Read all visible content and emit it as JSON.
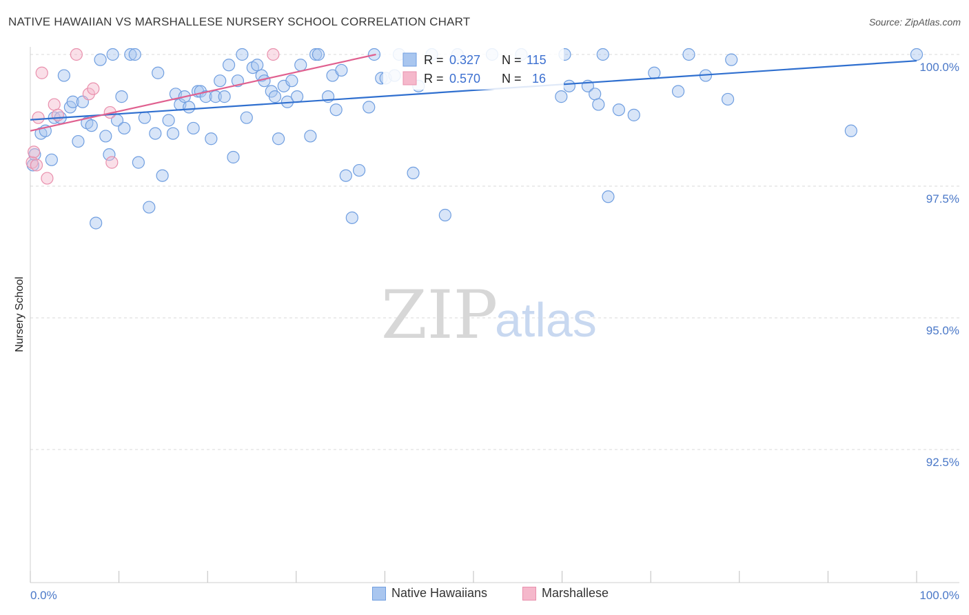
{
  "title": "NATIVE HAWAIIAN VS MARSHALLESE NURSERY SCHOOL CORRELATION CHART",
  "source": "Source: ZipAtlas.com",
  "watermark": {
    "zip": "ZIP",
    "atlas": "atlas"
  },
  "legend_top": [
    {
      "r_label": "R = ",
      "r_value": "0.327",
      "n_label": "N = ",
      "n_value": "115"
    },
    {
      "r_label": "R = ",
      "r_value": "0.570",
      "n_label": "N = ",
      "n_value": "16"
    }
  ],
  "legend_bottom": [
    {
      "label": "Native Hawaiians"
    },
    {
      "label": "Marshallese"
    }
  ],
  "colors": {
    "blue_fill": "#a9c6ef",
    "blue_stroke": "#6f9ee0",
    "blue_line": "#2f6fcf",
    "pink_fill": "#f5b8cb",
    "pink_stroke": "#e98fac",
    "pink_line": "#e0608f",
    "grid": "#d8d8d8",
    "tick_label": "#4a78c8"
  },
  "chart_data": {
    "type": "scatter",
    "xlabel": "",
    "ylabel": "Nursery School",
    "xlim": [
      0,
      100
    ],
    "ylim": [
      90.0,
      100.2
    ],
    "x_tick_labels": [
      "0.0%",
      "100.0%"
    ],
    "y_ticks": [
      100.0,
      97.5,
      95.0,
      92.5
    ],
    "y_tick_labels": [
      "100.0%",
      "97.5%",
      "95.0%",
      "92.5%"
    ],
    "grid": "horizontal dashed",
    "series": [
      {
        "name": "Native Hawaiians",
        "color": "#a9c6ef",
        "trend": {
          "x": [
            0,
            100
          ],
          "y": [
            98.76,
            99.88
          ]
        },
        "points": [
          {
            "x": 0.3,
            "y": 97.9
          },
          {
            "x": 0.5,
            "y": 98.1
          },
          {
            "x": 1.2,
            "y": 98.5
          },
          {
            "x": 1.7,
            "y": 98.55
          },
          {
            "x": 2.4,
            "y": 98.0
          },
          {
            "x": 2.7,
            "y": 98.8
          },
          {
            "x": 3.4,
            "y": 98.8
          },
          {
            "x": 3.8,
            "y": 99.6
          },
          {
            "x": 4.5,
            "y": 99.0
          },
          {
            "x": 4.8,
            "y": 99.1
          },
          {
            "x": 5.4,
            "y": 98.35
          },
          {
            "x": 5.9,
            "y": 99.1
          },
          {
            "x": 6.4,
            "y": 98.7
          },
          {
            "x": 6.9,
            "y": 98.65
          },
          {
            "x": 7.4,
            "y": 96.8
          },
          {
            "x": 7.9,
            "y": 99.9
          },
          {
            "x": 8.5,
            "y": 98.45
          },
          {
            "x": 8.9,
            "y": 98.1
          },
          {
            "x": 9.3,
            "y": 100.0
          },
          {
            "x": 9.8,
            "y": 98.75
          },
          {
            "x": 10.3,
            "y": 99.2
          },
          {
            "x": 10.6,
            "y": 98.6
          },
          {
            "x": 11.3,
            "y": 100.0
          },
          {
            "x": 11.8,
            "y": 100.0
          },
          {
            "x": 12.2,
            "y": 97.95
          },
          {
            "x": 12.9,
            "y": 98.8
          },
          {
            "x": 13.4,
            "y": 97.1
          },
          {
            "x": 14.1,
            "y": 98.5
          },
          {
            "x": 14.4,
            "y": 99.65
          },
          {
            "x": 14.9,
            "y": 97.7
          },
          {
            "x": 15.6,
            "y": 98.75
          },
          {
            "x": 16.1,
            "y": 98.5
          },
          {
            "x": 16.4,
            "y": 99.25
          },
          {
            "x": 16.9,
            "y": 99.05
          },
          {
            "x": 17.4,
            "y": 99.2
          },
          {
            "x": 17.9,
            "y": 99.0
          },
          {
            "x": 18.4,
            "y": 98.6
          },
          {
            "x": 18.9,
            "y": 99.3
          },
          {
            "x": 19.2,
            "y": 99.3
          },
          {
            "x": 19.8,
            "y": 99.2
          },
          {
            "x": 20.4,
            "y": 98.4
          },
          {
            "x": 20.9,
            "y": 99.2
          },
          {
            "x": 21.4,
            "y": 99.5
          },
          {
            "x": 21.9,
            "y": 99.2
          },
          {
            "x": 22.4,
            "y": 99.8
          },
          {
            "x": 22.9,
            "y": 98.05
          },
          {
            "x": 23.4,
            "y": 99.5
          },
          {
            "x": 23.9,
            "y": 100.0
          },
          {
            "x": 24.4,
            "y": 98.8
          },
          {
            "x": 25.1,
            "y": 99.75
          },
          {
            "x": 25.6,
            "y": 99.8
          },
          {
            "x": 26.1,
            "y": 99.6
          },
          {
            "x": 26.4,
            "y": 99.5
          },
          {
            "x": 27.2,
            "y": 99.3
          },
          {
            "x": 27.6,
            "y": 99.2
          },
          {
            "x": 28.0,
            "y": 98.4
          },
          {
            "x": 28.6,
            "y": 99.4
          },
          {
            "x": 29.0,
            "y": 99.1
          },
          {
            "x": 29.5,
            "y": 99.5
          },
          {
            "x": 30.1,
            "y": 99.2
          },
          {
            "x": 30.5,
            "y": 99.8
          },
          {
            "x": 31.6,
            "y": 98.45
          },
          {
            "x": 32.2,
            "y": 100.0
          },
          {
            "x": 32.5,
            "y": 100.0
          },
          {
            "x": 33.6,
            "y": 99.2
          },
          {
            "x": 34.1,
            "y": 99.6
          },
          {
            "x": 34.5,
            "y": 98.95
          },
          {
            "x": 35.1,
            "y": 99.7
          },
          {
            "x": 35.6,
            "y": 97.7
          },
          {
            "x": 36.3,
            "y": 96.9
          },
          {
            "x": 37.1,
            "y": 97.8
          },
          {
            "x": 38.2,
            "y": 99.0
          },
          {
            "x": 38.8,
            "y": 100.0
          },
          {
            "x": 39.6,
            "y": 99.55
          },
          {
            "x": 40.1,
            "y": 99.55
          },
          {
            "x": 41.1,
            "y": 99.6
          },
          {
            "x": 41.6,
            "y": 100.0
          },
          {
            "x": 43.2,
            "y": 97.75
          },
          {
            "x": 43.8,
            "y": 99.4
          },
          {
            "x": 45.3,
            "y": 100.0
          },
          {
            "x": 46.8,
            "y": 96.95
          },
          {
            "x": 48.2,
            "y": 100.0
          },
          {
            "x": 52.1,
            "y": 100.0
          },
          {
            "x": 55.4,
            "y": 100.0
          },
          {
            "x": 59.9,
            "y": 99.2
          },
          {
            "x": 60.3,
            "y": 100.0
          },
          {
            "x": 60.8,
            "y": 99.4
          },
          {
            "x": 62.9,
            "y": 99.4
          },
          {
            "x": 63.7,
            "y": 99.25
          },
          {
            "x": 64.1,
            "y": 99.05
          },
          {
            "x": 64.6,
            "y": 100.0
          },
          {
            "x": 65.2,
            "y": 97.3
          },
          {
            "x": 66.4,
            "y": 98.95
          },
          {
            "x": 68.1,
            "y": 98.85
          },
          {
            "x": 70.4,
            "y": 99.65
          },
          {
            "x": 73.1,
            "y": 99.3
          },
          {
            "x": 74.3,
            "y": 100.0
          },
          {
            "x": 76.2,
            "y": 99.6
          },
          {
            "x": 78.7,
            "y": 99.15
          },
          {
            "x": 79.1,
            "y": 99.9
          },
          {
            "x": 92.6,
            "y": 98.55
          },
          {
            "x": 100.0,
            "y": 100.0
          }
        ]
      },
      {
        "name": "Marshallese",
        "color": "#f5b8cb",
        "trend": {
          "x": [
            0,
            39
          ],
          "y": [
            98.55,
            100.0
          ]
        },
        "points": [
          {
            "x": 0.2,
            "y": 97.95
          },
          {
            "x": 0.4,
            "y": 98.15
          },
          {
            "x": 0.7,
            "y": 97.9
          },
          {
            "x": 0.9,
            "y": 98.8
          },
          {
            "x": 1.3,
            "y": 99.65
          },
          {
            "x": 1.9,
            "y": 97.65
          },
          {
            "x": 2.7,
            "y": 99.05
          },
          {
            "x": 3.1,
            "y": 98.85
          },
          {
            "x": 5.2,
            "y": 100.0
          },
          {
            "x": 6.6,
            "y": 99.25
          },
          {
            "x": 7.1,
            "y": 99.35
          },
          {
            "x": 9.0,
            "y": 98.9
          },
          {
            "x": 9.2,
            "y": 97.95
          },
          {
            "x": 27.4,
            "y": 100.0
          }
        ]
      }
    ]
  }
}
